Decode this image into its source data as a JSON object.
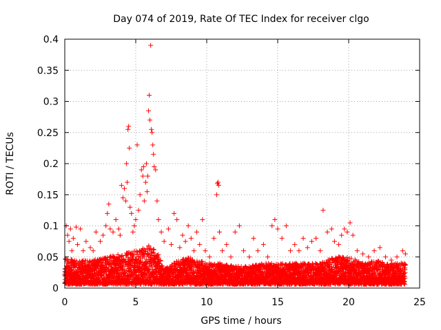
{
  "chart_data": {
    "type": "scatter",
    "title": "Day 074 of 2019, Rate Of TEC Index for receiver clgo",
    "xlabel": "GPS time / hours",
    "ylabel": "ROTI / TECUs",
    "xlim": [
      0,
      25
    ],
    "ylim": [
      0,
      0.4
    ],
    "xticks": [
      {
        "value": 0,
        "label": "0"
      },
      {
        "value": 5,
        "label": "5"
      },
      {
        "value": 10,
        "label": "10"
      },
      {
        "value": 15,
        "label": "15"
      },
      {
        "value": 20,
        "label": "20"
      },
      {
        "value": 25,
        "label": "25"
      }
    ],
    "yticks": [
      {
        "value": 0,
        "label": "0"
      },
      {
        "value": 0.05,
        "label": "0.05"
      },
      {
        "value": 0.1,
        "label": "0.1"
      },
      {
        "value": 0.15,
        "label": "0.15"
      },
      {
        "value": 0.2,
        "label": "0.2"
      },
      {
        "value": 0.25,
        "label": "0.25"
      },
      {
        "value": 0.3,
        "label": "0.3"
      },
      {
        "value": 0.35,
        "label": "0.35"
      },
      {
        "value": 0.4,
        "label": "0.4"
      }
    ],
    "grid": true,
    "marker": "+",
    "color": "#ff0000",
    "series": [
      {
        "name": "ROTI",
        "points": [
          [
            0.1,
            0.1
          ],
          [
            0.2,
            0.085
          ],
          [
            0.3,
            0.075
          ],
          [
            0.4,
            0.095
          ],
          [
            0.5,
            0.06
          ],
          [
            0.6,
            0.08
          ],
          [
            0.8,
            0.098
          ],
          [
            0.9,
            0.07
          ],
          [
            1.1,
            0.095
          ],
          [
            1.3,
            0.06
          ],
          [
            1.5,
            0.075
          ],
          [
            1.8,
            0.065
          ],
          [
            2.0,
            0.06
          ],
          [
            2.2,
            0.09
          ],
          [
            2.5,
            0.075
          ],
          [
            2.7,
            0.085
          ],
          [
            2.9,
            0.1
          ],
          [
            3.0,
            0.12
          ],
          [
            3.1,
            0.135
          ],
          [
            3.2,
            0.095
          ],
          [
            3.4,
            0.09
          ],
          [
            3.6,
            0.11
          ],
          [
            3.8,
            0.095
          ],
          [
            3.9,
            0.085
          ],
          [
            4.0,
            0.165
          ],
          [
            4.1,
            0.145
          ],
          [
            4.2,
            0.16
          ],
          [
            4.3,
            0.14
          ],
          [
            4.35,
            0.2
          ],
          [
            4.4,
            0.17
          ],
          [
            4.45,
            0.255
          ],
          [
            4.5,
            0.26
          ],
          [
            4.55,
            0.225
          ],
          [
            4.6,
            0.13
          ],
          [
            4.7,
            0.12
          ],
          [
            4.8,
            0.09
          ],
          [
            4.9,
            0.1
          ],
          [
            5.0,
            0.11
          ],
          [
            5.1,
            0.23
          ],
          [
            5.2,
            0.125
          ],
          [
            5.3,
            0.15
          ],
          [
            5.4,
            0.19
          ],
          [
            5.5,
            0.18
          ],
          [
            5.55,
            0.195
          ],
          [
            5.6,
            0.14
          ],
          [
            5.7,
            0.17
          ],
          [
            5.75,
            0.2
          ],
          [
            5.8,
            0.155
          ],
          [
            5.85,
            0.18
          ],
          [
            5.9,
            0.285
          ],
          [
            5.95,
            0.31
          ],
          [
            6.0,
            0.27
          ],
          [
            6.05,
            0.39
          ],
          [
            6.1,
            0.255
          ],
          [
            6.15,
            0.25
          ],
          [
            6.2,
            0.23
          ],
          [
            6.25,
            0.215
          ],
          [
            6.3,
            0.195
          ],
          [
            6.4,
            0.19
          ],
          [
            6.5,
            0.14
          ],
          [
            6.6,
            0.11
          ],
          [
            6.8,
            0.09
          ],
          [
            7.0,
            0.075
          ],
          [
            7.3,
            0.095
          ],
          [
            7.5,
            0.07
          ],
          [
            7.7,
            0.12
          ],
          [
            7.9,
            0.11
          ],
          [
            8.1,
            0.065
          ],
          [
            8.3,
            0.085
          ],
          [
            8.5,
            0.075
          ],
          [
            8.7,
            0.1
          ],
          [
            8.9,
            0.08
          ],
          [
            9.1,
            0.06
          ],
          [
            9.3,
            0.09
          ],
          [
            9.5,
            0.07
          ],
          [
            9.7,
            0.11
          ],
          [
            9.9,
            0.06
          ],
          [
            10.2,
            0.05
          ],
          [
            10.5,
            0.08
          ],
          [
            10.7,
            0.15
          ],
          [
            10.75,
            0.168
          ],
          [
            10.8,
            0.17
          ],
          [
            10.85,
            0.165
          ],
          [
            10.9,
            0.09
          ],
          [
            11.1,
            0.06
          ],
          [
            11.4,
            0.07
          ],
          [
            11.7,
            0.05
          ],
          [
            12.0,
            0.09
          ],
          [
            12.3,
            0.1
          ],
          [
            12.6,
            0.06
          ],
          [
            13.0,
            0.05
          ],
          [
            13.3,
            0.08
          ],
          [
            13.6,
            0.06
          ],
          [
            14.0,
            0.07
          ],
          [
            14.3,
            0.05
          ],
          [
            14.6,
            0.1
          ],
          [
            14.8,
            0.11
          ],
          [
            15.0,
            0.095
          ],
          [
            15.3,
            0.08
          ],
          [
            15.6,
            0.1
          ],
          [
            15.9,
            0.06
          ],
          [
            16.2,
            0.07
          ],
          [
            16.5,
            0.06
          ],
          [
            16.8,
            0.08
          ],
          [
            17.1,
            0.065
          ],
          [
            17.4,
            0.075
          ],
          [
            17.7,
            0.08
          ],
          [
            18.0,
            0.06
          ],
          [
            18.2,
            0.125
          ],
          [
            18.5,
            0.09
          ],
          [
            18.8,
            0.095
          ],
          [
            19.0,
            0.075
          ],
          [
            19.3,
            0.07
          ],
          [
            19.5,
            0.085
          ],
          [
            19.7,
            0.095
          ],
          [
            19.9,
            0.09
          ],
          [
            20.1,
            0.105
          ],
          [
            20.3,
            0.085
          ],
          [
            20.6,
            0.06
          ],
          [
            21.0,
            0.055
          ],
          [
            21.4,
            0.05
          ],
          [
            21.8,
            0.06
          ],
          [
            22.2,
            0.065
          ],
          [
            22.6,
            0.05
          ],
          [
            23.0,
            0.045
          ],
          [
            23.4,
            0.05
          ],
          [
            23.8,
            0.06
          ],
          [
            24.0,
            0.055
          ]
        ],
        "band": {
          "note": "dense noise floor of ROTI values between roughly 0.005 and 0.06 TECUs across 0-24 h",
          "x_range": [
            0,
            24
          ],
          "envelope": [
            [
              0.0,
              0.05
            ],
            [
              1.0,
              0.045
            ],
            [
              2.0,
              0.045
            ],
            [
              3.0,
              0.05
            ],
            [
              4.0,
              0.055
            ],
            [
              5.0,
              0.06
            ],
            [
              6.0,
              0.07
            ],
            [
              6.5,
              0.06
            ],
            [
              7.0,
              0.03
            ],
            [
              8.0,
              0.045
            ],
            [
              9.0,
              0.05
            ],
            [
              10.0,
              0.04
            ],
            [
              11.0,
              0.04
            ],
            [
              12.0,
              0.035
            ],
            [
              13.0,
              0.035
            ],
            [
              14.0,
              0.04
            ],
            [
              15.0,
              0.04
            ],
            [
              16.0,
              0.04
            ],
            [
              17.0,
              0.04
            ],
            [
              18.0,
              0.04
            ],
            [
              19.0,
              0.05
            ],
            [
              20.0,
              0.05
            ],
            [
              21.0,
              0.04
            ],
            [
              22.0,
              0.045
            ],
            [
              23.0,
              0.04
            ],
            [
              24.0,
              0.04
            ]
          ]
        }
      }
    ]
  }
}
